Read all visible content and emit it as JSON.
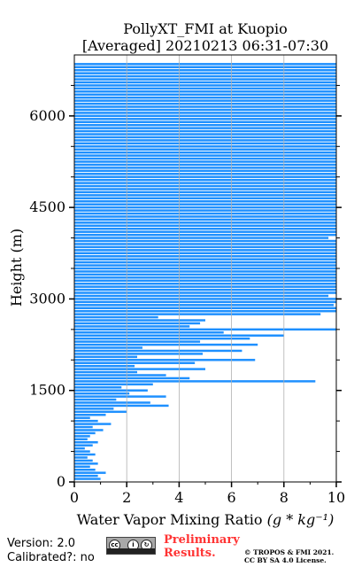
{
  "chart_data": {
    "type": "bar",
    "orientation": "horizontal",
    "title": "PollyXT_FMI at Kuopio",
    "subtitle": "[Averaged] 20210213 06:31-07:30",
    "xlabel": "Water Vapor Mixing Ratio ",
    "xlabel_math": "(g * kg⁻¹)",
    "ylabel": "Height (m)",
    "xlim": [
      0,
      10
    ],
    "ylim": [
      0,
      7000
    ],
    "xticks": [
      "0",
      "2",
      "4",
      "6",
      "8",
      "10"
    ],
    "yticks": [
      "0",
      "1500",
      "3000",
      "4500",
      "6000"
    ],
    "grid": "vertical",
    "color": "#1e90ff",
    "profile": [
      [
        50,
        1.0
      ],
      [
        100,
        0.9
      ],
      [
        150,
        1.2
      ],
      [
        200,
        0.8
      ],
      [
        250,
        0.6
      ],
      [
        300,
        0.9
      ],
      [
        350,
        0.7
      ],
      [
        400,
        0.5
      ],
      [
        450,
        0.8
      ],
      [
        500,
        0.6
      ],
      [
        550,
        0.4
      ],
      [
        600,
        0.7
      ],
      [
        650,
        0.9
      ],
      [
        700,
        0.5
      ],
      [
        750,
        0.6
      ],
      [
        800,
        0.8
      ],
      [
        850,
        1.1
      ],
      [
        900,
        0.7
      ],
      [
        950,
        1.4
      ],
      [
        1000,
        0.9
      ],
      [
        1050,
        0.6
      ],
      [
        1100,
        1.2
      ],
      [
        1150,
        2.0
      ],
      [
        1200,
        1.5
      ],
      [
        1250,
        3.6
      ],
      [
        1300,
        2.9
      ],
      [
        1350,
        1.6
      ],
      [
        1400,
        3.5
      ],
      [
        1450,
        2.1
      ],
      [
        1500,
        2.8
      ],
      [
        1550,
        1.8
      ],
      [
        1600,
        3.0
      ],
      [
        1650,
        9.2
      ],
      [
        1700,
        4.4
      ],
      [
        1750,
        3.5
      ],
      [
        1800,
        2.4
      ],
      [
        1850,
        5.0
      ],
      [
        1900,
        2.3
      ],
      [
        1950,
        4.6
      ],
      [
        2000,
        6.9
      ],
      [
        2050,
        2.4
      ],
      [
        2100,
        4.9
      ],
      [
        2150,
        6.4
      ],
      [
        2200,
        2.6
      ],
      [
        2250,
        7.0
      ],
      [
        2300,
        4.8
      ],
      [
        2350,
        6.7
      ],
      [
        2400,
        8.0
      ],
      [
        2450,
        5.7
      ],
      [
        2500,
        10.0
      ],
      [
        2550,
        4.4
      ],
      [
        2600,
        4.8
      ],
      [
        2650,
        5.0
      ],
      [
        2700,
        3.2
      ],
      [
        2750,
        9.4
      ],
      [
        2800,
        10.0
      ],
      [
        2850,
        10.0
      ],
      [
        2900,
        9.9
      ],
      [
        2950,
        10.0
      ],
      [
        3000,
        10.0
      ],
      [
        3050,
        9.7
      ],
      [
        3100,
        10.0
      ],
      [
        3150,
        10.0
      ],
      [
        3200,
        10.0
      ],
      [
        3250,
        10.0
      ],
      [
        3300,
        10.0
      ],
      [
        3350,
        10.0
      ],
      [
        3400,
        10.0
      ],
      [
        3450,
        10.0
      ],
      [
        3500,
        10.0
      ],
      [
        3550,
        10.0
      ],
      [
        3600,
        10.0
      ],
      [
        3650,
        10.0
      ],
      [
        3700,
        10.0
      ],
      [
        3750,
        10.0
      ],
      [
        3800,
        10.0
      ],
      [
        3850,
        10.0
      ],
      [
        3900,
        10.0
      ],
      [
        3950,
        10.0
      ],
      [
        4000,
        9.7
      ],
      [
        4050,
        10.0
      ],
      [
        4100,
        10.0
      ],
      [
        4150,
        10.0
      ],
      [
        4200,
        10.0
      ],
      [
        4250,
        10.0
      ],
      [
        4300,
        10.0
      ],
      [
        4350,
        10.0
      ],
      [
        4400,
        10.0
      ],
      [
        4450,
        10.0
      ],
      [
        4500,
        10.0
      ],
      [
        4550,
        10.0
      ],
      [
        4600,
        10.0
      ],
      [
        4650,
        10.0
      ],
      [
        4700,
        10.0
      ],
      [
        4750,
        10.0
      ],
      [
        4800,
        10.0
      ],
      [
        4850,
        10.0
      ],
      [
        4900,
        10.0
      ],
      [
        4950,
        10.0
      ],
      [
        5000,
        10.0
      ],
      [
        5050,
        10.0
      ],
      [
        5100,
        10.0
      ],
      [
        5150,
        10.0
      ],
      [
        5200,
        10.0
      ],
      [
        5250,
        10.0
      ],
      [
        5300,
        10.0
      ],
      [
        5350,
        10.0
      ],
      [
        5400,
        10.0
      ],
      [
        5450,
        10.0
      ],
      [
        5500,
        10.0
      ],
      [
        5550,
        10.0
      ],
      [
        5600,
        10.0
      ],
      [
        5650,
        10.0
      ],
      [
        5700,
        10.0
      ],
      [
        5750,
        10.0
      ],
      [
        5800,
        10.0
      ],
      [
        5850,
        10.0
      ],
      [
        5900,
        10.0
      ],
      [
        5950,
        10.0
      ],
      [
        6000,
        10.0
      ],
      [
        6050,
        10.0
      ],
      [
        6100,
        10.0
      ],
      [
        6150,
        10.0
      ],
      [
        6200,
        10.0
      ],
      [
        6250,
        10.0
      ],
      [
        6300,
        10.0
      ],
      [
        6350,
        10.0
      ],
      [
        6400,
        10.0
      ],
      [
        6450,
        10.0
      ],
      [
        6500,
        10.0
      ],
      [
        6550,
        10.0
      ],
      [
        6600,
        10.0
      ],
      [
        6650,
        10.0
      ],
      [
        6700,
        10.0
      ],
      [
        6750,
        10.0
      ],
      [
        6800,
        10.0
      ],
      [
        6850,
        10.0
      ]
    ]
  },
  "footer": {
    "version": "Version: 2.0",
    "calibrated": "Calibrated?: no",
    "preliminary_line1": "Preliminary",
    "preliminary_line2": "Results.",
    "copyright_line1": "© TROPOS & FMI 2021.",
    "copyright_line2": "CC BY SA 4.0 License.",
    "license_badge": {
      "icon": "cc-by-sa-icon",
      "marks": [
        "cc",
        "i",
        "↻"
      ]
    }
  }
}
